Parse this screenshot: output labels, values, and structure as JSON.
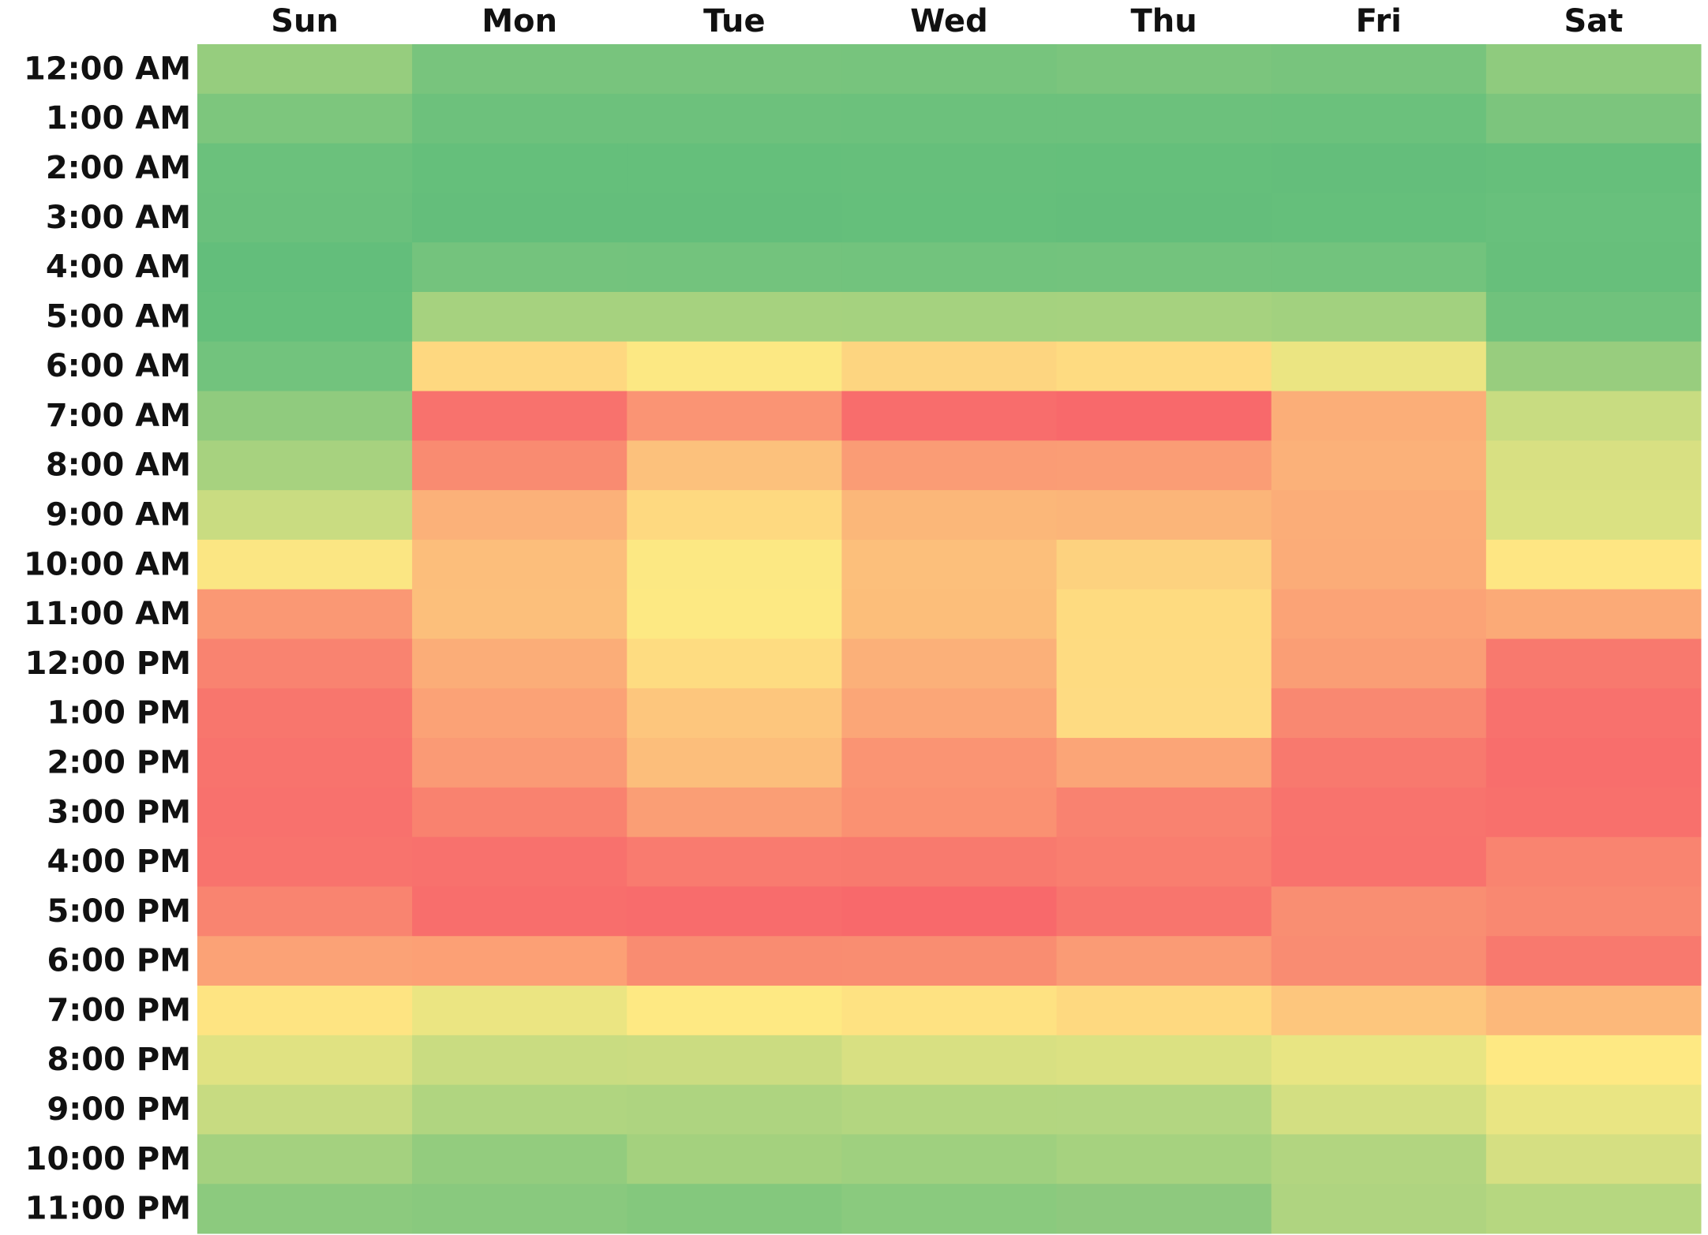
{
  "chart_data": {
    "type": "heatmap",
    "x_categories": [
      "Sun",
      "Mon",
      "Tue",
      "Wed",
      "Thu",
      "Fri",
      "Sat"
    ],
    "y_categories": [
      "12:00 AM",
      "1:00 AM",
      "2:00 AM",
      "3:00 AM",
      "4:00 AM",
      "5:00 AM",
      "6:00 AM",
      "7:00 AM",
      "8:00 AM",
      "9:00 AM",
      "10:00 AM",
      "11:00 AM",
      "12:00 PM",
      "1:00 PM",
      "2:00 PM",
      "3:00 PM",
      "4:00 PM",
      "5:00 PM",
      "6:00 PM",
      "7:00 PM",
      "8:00 PM",
      "9:00 PM",
      "10:00 PM",
      "11:00 PM"
    ],
    "colors": [
      [
        "#96cd7e",
        "#78c47d",
        "#78c47d",
        "#77c47d",
        "#7bc57d",
        "#78c47d",
        "#8fcb7e"
      ],
      [
        "#7dc67d",
        "#6dc17c",
        "#6dc17c",
        "#6cc17c",
        "#6cc17c",
        "#6bc17c",
        "#7cc57d"
      ],
      [
        "#6bc17c",
        "#65bf7b",
        "#65bf7b",
        "#66bf7b",
        "#65bf7b",
        "#64be7b",
        "#66bf7b"
      ],
      [
        "#6ac07c",
        "#64be7b",
        "#64be7b",
        "#65bf7b",
        "#64be7b",
        "#65bf7b",
        "#68c07c"
      ],
      [
        "#63be7b",
        "#74c37d",
        "#73c37d",
        "#72c37d",
        "#73c37d",
        "#72c37d",
        "#67bf7b"
      ],
      [
        "#65bf7b",
        "#a6d27f",
        "#a6d27f",
        "#a5d27f",
        "#a6d27f",
        "#a2d17f",
        "#70c27c"
      ],
      [
        "#72c37d",
        "#fed880",
        "#fce883",
        "#fdd580",
        "#fedb81",
        "#ebe582",
        "#98cd7e"
      ],
      [
        "#90cb7e",
        "#f8726d",
        "#fa9474",
        "#f86d6c",
        "#f8696b",
        "#fbae78",
        "#c8dc81"
      ],
      [
        "#a7d27f",
        "#f98b71",
        "#fcc17c",
        "#fa9c75",
        "#fa9d75",
        "#fbb179",
        "#d8e082"
      ],
      [
        "#c9dc81",
        "#fbb179",
        "#fed980",
        "#fbb779",
        "#fbb579",
        "#fbad78",
        "#dae182"
      ],
      [
        "#fbe683",
        "#fcbe7b",
        "#fce883",
        "#fcbf7b",
        "#fdd27f",
        "#fbac78",
        "#fee683"
      ],
      [
        "#fa9874",
        "#fcbf7b",
        "#fde983",
        "#fcbe7a",
        "#fedb80",
        "#fba376",
        "#fbaa77"
      ],
      [
        "#f98370",
        "#fbad78",
        "#fedc81",
        "#fbb079",
        "#fedb81",
        "#fa9e75",
        "#f8796e"
      ],
      [
        "#f8766d",
        "#fba276",
        "#fdc67d",
        "#fba677",
        "#fedb82",
        "#f98871",
        "#f8716d"
      ],
      [
        "#f8736d",
        "#fa9a75",
        "#fcbe7b",
        "#fa9473",
        "#fba577",
        "#f8796e",
        "#f86e6c"
      ],
      [
        "#f8716d",
        "#f9826f",
        "#fa9e75",
        "#fa9172",
        "#f98270",
        "#f8736d",
        "#f8706c"
      ],
      [
        "#f8736d",
        "#f8716d",
        "#f97b6f",
        "#f87a6e",
        "#f97e6f",
        "#f8726d",
        "#f98470"
      ],
      [
        "#f98470",
        "#f86e6c",
        "#f86c6c",
        "#f8696b",
        "#f8756d",
        "#f98e72",
        "#f98871"
      ],
      [
        "#fba276",
        "#fca075",
        "#f98c71",
        "#f98d71",
        "#fa9b75",
        "#f98c72",
        "#f8796e"
      ],
      [
        "#fee482",
        "#ebe582",
        "#fee983",
        "#fee282",
        "#fed980",
        "#fdc67d",
        "#fcb87a"
      ],
      [
        "#e0e282",
        "#c9dc81",
        "#cbdc81",
        "#d8e082",
        "#dbe182",
        "#e8e583",
        "#fee983"
      ],
      [
        "#c7db81",
        "#b0d580",
        "#aed480",
        "#b3d680",
        "#b3d681",
        "#d3df82",
        "#e9e583"
      ],
      [
        "#a4d17f",
        "#93cc7e",
        "#a4d17e",
        "#9fd07f",
        "#a6d27f",
        "#b2d580",
        "#d5df82"
      ],
      [
        "#8cca7e",
        "#89c97e",
        "#84c87d",
        "#8aca7e",
        "#8ec97e",
        "#afd480",
        "#b6d780"
      ]
    ]
  }
}
